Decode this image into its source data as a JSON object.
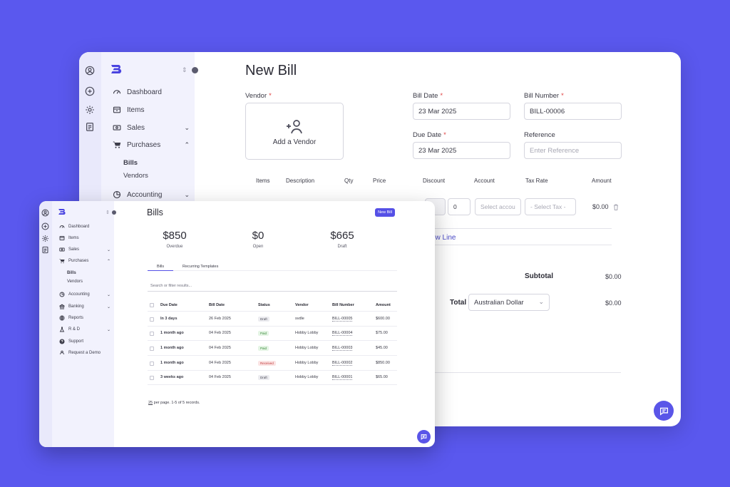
{
  "colors": {
    "background": "#5a58ee",
    "accent": "#5550e6",
    "sidebar": "#f2f2fd",
    "rail": "#e9e9fb"
  },
  "new_bill": {
    "title": "New Bill",
    "vendor": {
      "label": "Vendor",
      "add_label": "Add a Vendor"
    },
    "bill_date": {
      "label": "Bill Date",
      "value": "23 Mar 2025"
    },
    "bill_number": {
      "label": "Bill Number",
      "value": "BILL-00006"
    },
    "due_date": {
      "label": "Due Date",
      "value": "23 Mar 2025"
    },
    "reference": {
      "label": "Reference",
      "placeholder": "Enter Reference"
    },
    "required_mark": "*",
    "line_headers": {
      "items": "Items",
      "description": "Description",
      "qty": "Qty",
      "price": "Price",
      "discount": "Discount",
      "account": "Account",
      "tax_rate": "Tax Rate",
      "amount": "Amount"
    },
    "line": {
      "discount_symbol": "$",
      "discount_value": "0",
      "account_placeholder": "Select accou",
      "tax_placeholder": "- Select Tax -",
      "amount": "$0.00"
    },
    "add_line_label": "ew Line",
    "subtotal_label": "Subtotal",
    "subtotal_value": "$0.00",
    "total_label": "Total",
    "currency": "Australian Dollar",
    "total_value": "$0.00",
    "sidebar": {
      "items": [
        {
          "label": "Dashboard",
          "icon": "dashboard-icon"
        },
        {
          "label": "Items",
          "icon": "box-icon"
        },
        {
          "label": "Sales",
          "icon": "money-icon",
          "chevron": "⌄"
        },
        {
          "label": "Purchases",
          "icon": "cart-icon",
          "chevron": "⌃"
        },
        {
          "label": "Accounting",
          "icon": "pie-icon",
          "chevron": "⌄"
        }
      ],
      "sub_items": [
        "Bills",
        "Vendors"
      ]
    }
  },
  "bills": {
    "title": "Bills",
    "new_bill_button": "New Bill",
    "stats": [
      {
        "value": "$850",
        "label": "Overdue"
      },
      {
        "value": "$0",
        "label": "Open"
      },
      {
        "value": "$665",
        "label": "Draft"
      }
    ],
    "tabs": [
      "Bills",
      "Recurring Templates"
    ],
    "search_placeholder": "Search or filter results...",
    "columns": [
      "Due Date",
      "Bill Date",
      "Status",
      "Vendor",
      "Bill Number",
      "Amount"
    ],
    "rows": [
      {
        "due": "In 3 days",
        "bill_date": "26 Feb 2025",
        "status": "Draft",
        "vendor": "svdle",
        "number": "BILL-00005",
        "amount": "$600.00"
      },
      {
        "due": "1 month ago",
        "bill_date": "04 Feb 2025",
        "status": "Paid",
        "vendor": "Hobby Lobby",
        "number": "BILL-00004",
        "amount": "$75.00"
      },
      {
        "due": "1 month ago",
        "bill_date": "04 Feb 2025",
        "status": "Paid",
        "vendor": "Hobby Lobby",
        "number": "BILL-00003",
        "amount": "$45.00"
      },
      {
        "due": "1 month ago",
        "bill_date": "04 Feb 2025",
        "status": "Received",
        "vendor": "Hobby Lobby",
        "number": "BILL-00002",
        "amount": "$850.00"
      },
      {
        "due": "3 weeks ago",
        "bill_date": "04 Feb 2025",
        "status": "Draft",
        "vendor": "Hobby Lobby",
        "number": "BILL-00001",
        "amount": "$65.00"
      }
    ],
    "pager": {
      "per_page": "25",
      "text": " per page. 1-5 of 5 records."
    },
    "sidebar": {
      "items": [
        {
          "label": "Dashboard",
          "icon": "dashboard-icon"
        },
        {
          "label": "Items",
          "icon": "box-icon"
        },
        {
          "label": "Sales",
          "icon": "money-icon",
          "chevron": "⌄"
        },
        {
          "label": "Purchases",
          "icon": "cart-icon",
          "chevron": "⌃"
        },
        {
          "label": "Accounting",
          "icon": "pie-icon",
          "chevron": "⌄"
        },
        {
          "label": "Banking",
          "icon": "bank-icon",
          "chevron": "⌄"
        },
        {
          "label": "Reports",
          "icon": "globe-icon"
        },
        {
          "label": "R & D",
          "icon": "flask-icon",
          "chevron": "⌄"
        },
        {
          "label": "Support",
          "icon": "help-icon"
        },
        {
          "label": "Request a Demo",
          "icon": "demo-icon"
        }
      ],
      "sub_items": [
        "Bills",
        "Vendors"
      ]
    }
  }
}
